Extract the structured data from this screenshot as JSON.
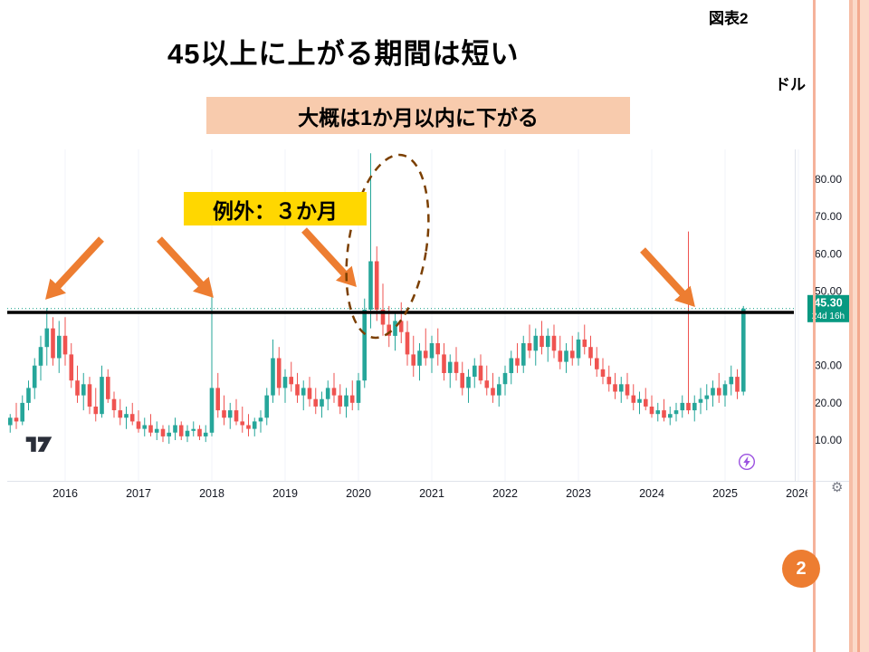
{
  "slide": {
    "figure_label": "図表2",
    "title": "45以上に上がる期間は短い",
    "unit_label": "ドル",
    "callouts": {
      "primary": "大概は1か月以内に下がる",
      "exception": "例外：３か月"
    },
    "page_number": "2",
    "accent_colors": {
      "arrow": "#ED7D31",
      "callout_primary_bg": "#F8CBAD",
      "callout_exception_bg": "#FFD700",
      "ellipse": "#7B3F00",
      "threshold_line": "#000000",
      "page_badge": "#ED7D31"
    }
  },
  "chart": {
    "platform": "TradingView",
    "price_label": {
      "value": "45.30",
      "countdown": "24d 16h"
    },
    "colors": {
      "up": "#26a69a",
      "down": "#ef5350",
      "badge": "#089981",
      "grid": "#f0f3fa",
      "axis_text": "#131722",
      "dotted_line": "#089981",
      "border": "#e0e3eb"
    }
  },
  "chart_data": {
    "type": "candlestick",
    "interval": "1M",
    "unit": "ドル",
    "start": {
      "year": 2015,
      "month": 4
    },
    "x_ticks": [
      "2016",
      "2017",
      "2018",
      "2019",
      "2020",
      "2021",
      "2022",
      "2023",
      "2024",
      "2025",
      "2026"
    ],
    "y_ticks": [
      80,
      70,
      60,
      50,
      30,
      20,
      10
    ],
    "ylim": [
      -2,
      88
    ],
    "current_price": 45.3,
    "countdown": "24d 16h",
    "annotation_line_price": 45.0,
    "candles": [
      [
        14,
        17,
        12,
        16
      ],
      [
        16,
        20,
        13,
        15
      ],
      [
        15,
        22,
        14,
        20
      ],
      [
        20,
        26,
        18,
        24
      ],
      [
        24,
        32,
        21,
        30
      ],
      [
        30,
        38,
        26,
        35
      ],
      [
        35,
        45.5,
        30,
        40
      ],
      [
        40,
        43,
        30,
        32
      ],
      [
        32,
        42,
        28,
        38
      ],
      [
        38,
        43,
        30,
        33
      ],
      [
        33,
        36,
        24,
        26
      ],
      [
        26,
        30,
        20,
        22
      ],
      [
        22,
        28,
        18,
        25
      ],
      [
        25,
        27,
        17,
        19
      ],
      [
        19,
        24,
        15,
        17
      ],
      [
        17,
        30,
        16,
        27
      ],
      [
        27,
        29,
        20,
        21
      ],
      [
        21,
        23,
        16,
        18
      ],
      [
        18,
        21,
        14,
        16
      ],
      [
        16,
        19,
        13,
        17
      ],
      [
        17,
        20,
        14,
        15
      ],
      [
        15,
        18,
        12,
        13
      ],
      [
        13,
        16,
        11,
        14
      ],
      [
        14,
        17,
        11,
        12
      ],
      [
        12,
        15,
        10,
        13
      ],
      [
        13,
        14,
        9.5,
        11
      ],
      [
        11,
        14,
        9,
        12
      ],
      [
        12,
        16,
        10,
        14
      ],
      [
        14,
        15,
        10,
        11
      ],
      [
        11,
        14,
        9.5,
        12.5
      ],
      [
        12.5,
        15,
        11,
        13
      ],
      [
        13,
        14,
        10,
        11
      ],
      [
        11,
        14,
        9.5,
        12
      ],
      [
        12,
        50,
        11,
        24
      ],
      [
        24,
        28,
        16,
        18
      ],
      [
        18,
        22,
        14,
        16
      ],
      [
        16,
        20,
        13,
        18
      ],
      [
        18,
        21,
        14,
        15
      ],
      [
        15,
        19,
        12,
        14
      ],
      [
        14,
        17,
        11,
        13
      ],
      [
        13,
        16,
        11,
        15
      ],
      [
        15,
        18,
        12,
        16
      ],
      [
        16,
        24,
        14,
        22
      ],
      [
        22,
        37,
        20,
        32
      ],
      [
        32,
        35,
        22,
        24
      ],
      [
        24,
        29,
        20,
        27
      ],
      [
        27,
        31,
        23,
        25
      ],
      [
        25,
        28,
        20,
        22
      ],
      [
        22,
        26,
        18,
        24
      ],
      [
        24,
        27,
        19,
        21
      ],
      [
        21,
        24,
        17,
        19
      ],
      [
        19,
        23,
        16,
        21
      ],
      [
        21,
        26,
        18,
        24
      ],
      [
        24,
        28,
        20,
        22
      ],
      [
        22,
        25,
        17,
        19
      ],
      [
        19,
        24,
        16,
        22
      ],
      [
        22,
        26,
        18,
        20
      ],
      [
        20,
        28,
        18,
        26
      ],
      [
        26,
        48,
        24,
        45
      ],
      [
        45,
        87,
        40,
        58
      ],
      [
        58,
        62,
        42,
        45
      ],
      [
        45,
        52,
        38,
        41
      ],
      [
        41,
        46,
        35,
        38
      ],
      [
        38,
        44,
        34,
        42
      ],
      [
        42,
        47,
        36,
        39
      ],
      [
        39,
        42,
        30,
        33
      ],
      [
        33,
        38,
        27,
        30
      ],
      [
        30,
        36,
        26,
        34
      ],
      [
        34,
        40,
        30,
        32
      ],
      [
        32,
        38,
        28,
        36
      ],
      [
        36,
        40,
        30,
        33
      ],
      [
        33,
        36,
        26,
        28
      ],
      [
        28,
        33,
        24,
        31
      ],
      [
        31,
        35,
        26,
        28
      ],
      [
        28,
        31,
        22,
        24
      ],
      [
        24,
        29,
        20,
        27
      ],
      [
        27,
        32,
        24,
        30
      ],
      [
        30,
        33,
        25,
        26
      ],
      [
        26,
        30,
        22,
        24
      ],
      [
        24,
        28,
        20,
        22
      ],
      [
        22,
        27,
        19,
        25
      ],
      [
        25,
        30,
        22,
        28
      ],
      [
        28,
        34,
        25,
        32
      ],
      [
        32,
        36,
        28,
        30
      ],
      [
        30,
        38,
        28,
        36
      ],
      [
        36,
        41,
        32,
        34
      ],
      [
        34,
        40,
        30,
        38
      ],
      [
        38,
        42,
        33,
        35
      ],
      [
        35,
        40,
        31,
        38
      ],
      [
        38,
        41,
        32,
        34
      ],
      [
        34,
        38,
        29,
        31
      ],
      [
        31,
        36,
        28,
        34
      ],
      [
        34,
        38,
        30,
        32
      ],
      [
        32,
        39,
        30,
        37
      ],
      [
        37,
        41,
        33,
        35
      ],
      [
        35,
        38,
        30,
        32
      ],
      [
        32,
        35,
        27,
        29
      ],
      [
        29,
        32,
        25,
        27
      ],
      [
        27,
        30,
        23,
        25
      ],
      [
        25,
        28,
        21,
        23
      ],
      [
        23,
        27,
        20,
        25
      ],
      [
        25,
        28,
        21,
        22
      ],
      [
        22,
        25,
        18,
        20
      ],
      [
        20,
        23,
        17,
        21
      ],
      [
        21,
        24,
        18,
        19
      ],
      [
        19,
        22,
        16,
        17
      ],
      [
        17,
        20,
        15,
        18
      ],
      [
        18,
        21,
        15,
        16
      ],
      [
        16,
        19,
        14,
        17
      ],
      [
        17,
        20,
        15,
        18
      ],
      [
        18,
        22,
        16,
        20
      ],
      [
        20,
        66,
        17,
        18
      ],
      [
        18,
        22,
        15,
        20
      ],
      [
        20,
        24,
        17,
        21
      ],
      [
        21,
        25,
        18,
        22
      ],
      [
        22,
        26,
        19,
        24
      ],
      [
        24,
        28,
        20,
        22
      ],
      [
        22,
        26,
        19,
        25
      ],
      [
        25,
        30,
        22,
        27
      ],
      [
        27,
        29,
        21,
        23
      ],
      [
        23,
        46,
        22,
        45.3
      ]
    ]
  }
}
